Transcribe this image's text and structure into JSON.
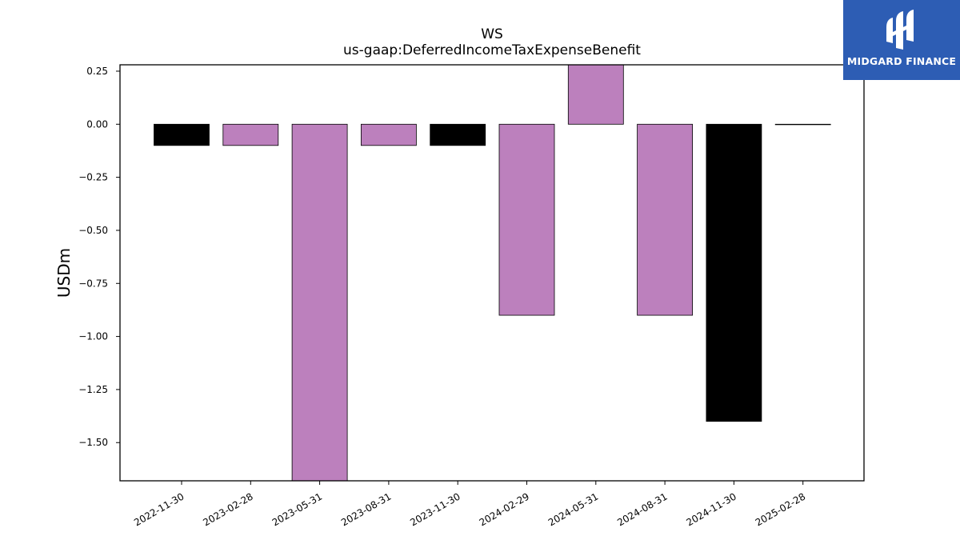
{
  "chart_data": {
    "type": "bar",
    "title": "WS",
    "subtitle": "us-gaap:DeferredIncomeTaxExpenseBenefit",
    "xlabel": "",
    "ylabel": "USDm",
    "categories": [
      "2022-11-30",
      "2023-02-28",
      "2023-05-31",
      "2023-08-31",
      "2023-11-30",
      "2024-02-29",
      "2024-05-31",
      "2024-08-31",
      "2024-11-30",
      "2025-02-28"
    ],
    "values": [
      -0.1,
      -0.1,
      -1.7,
      -0.1,
      -0.1,
      -0.9,
      0.3,
      -0.9,
      -1.4,
      0.0
    ],
    "bar_colors": [
      "#000000",
      "#bc80bd",
      "#bc80bd",
      "#bc80bd",
      "#000000",
      "#bc80bd",
      "#bc80bd",
      "#bc80bd",
      "#000000",
      "#bc80bd"
    ],
    "ylim": [
      -1.68,
      0.28
    ],
    "yticks": [
      0.25,
      0.0,
      -0.25,
      -0.5,
      -0.75,
      -1.0,
      -1.25,
      -1.5
    ],
    "ytick_labels": [
      "0.25",
      "0.00",
      "−0.25",
      "−0.50",
      "−0.75",
      "−1.00",
      "−1.25",
      "−1.50"
    ],
    "grid": false,
    "legend": "none"
  },
  "logo": {
    "text": "MIDGARD FINANCE",
    "icon": "midgard-logo-icon",
    "background": "#2d5db4"
  }
}
